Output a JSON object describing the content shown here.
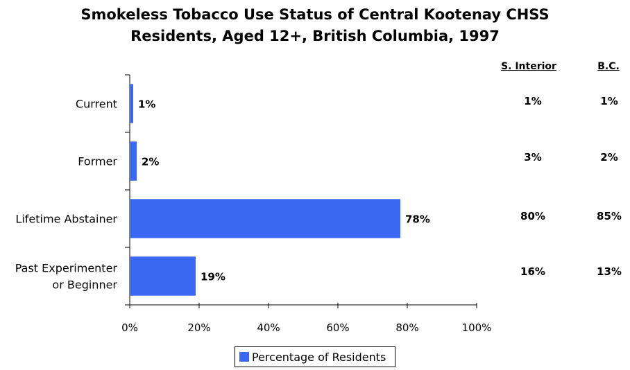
{
  "title": {
    "line1": "Smokeless Tobacco Use Status of Central Kootenay CHSS",
    "line2": "Residents, Aged 12+, British Columbia, 1997"
  },
  "colors": {
    "bar": "#3b68f3",
    "axis": "#000000"
  },
  "comparison": {
    "headers": [
      "S. Interior",
      "B.C."
    ],
    "rows": [
      [
        "1%",
        "1%"
      ],
      [
        "3%",
        "2%"
      ],
      [
        "80%",
        "85%"
      ],
      [
        "16%",
        "13%"
      ]
    ]
  },
  "chart_data": {
    "type": "bar",
    "orientation": "horizontal",
    "categories": [
      [
        "Current"
      ],
      [
        "Former"
      ],
      [
        "Lifetime Abstainer"
      ],
      [
        "Past Experimenter",
        "or Beginner"
      ]
    ],
    "series": [
      {
        "name": "Percentage of Residents",
        "values": [
          1,
          2,
          78,
          19
        ]
      }
    ],
    "data_labels": [
      "1%",
      "2%",
      "78%",
      "19%"
    ],
    "xlim": [
      0,
      100
    ],
    "x_ticks": [
      "0%",
      "20%",
      "40%",
      "60%",
      "80%",
      "100%"
    ],
    "grid": false,
    "legend_position": "bottom"
  }
}
